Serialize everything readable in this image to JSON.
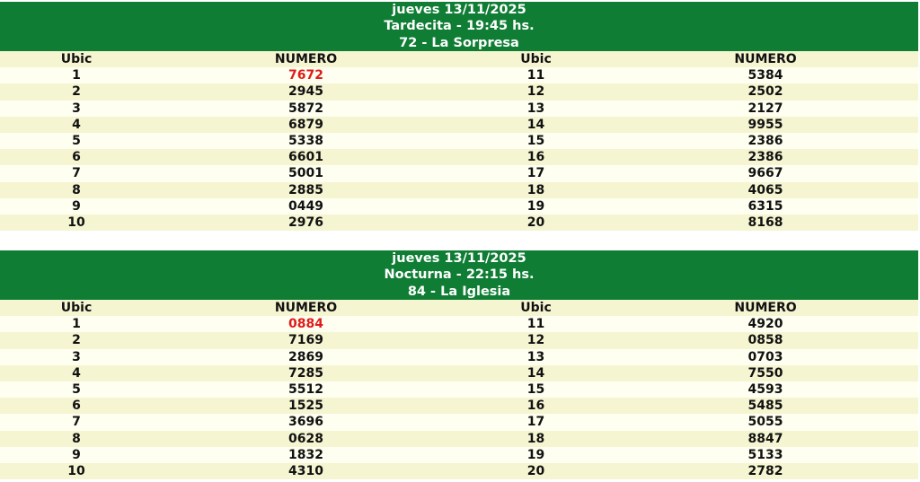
{
  "columns": {
    "ubic": "Ubic",
    "numero": "NUMERO"
  },
  "colors": {
    "header_bg": "#0f7d34",
    "first_prize": "#e01b1b",
    "row_alt": "#f5f5d2",
    "row_light": "#fefff0"
  },
  "draws": [
    {
      "date": "jueves 13/11/2025",
      "session": "Tardecita - 19:45 hs.",
      "head_number": "72 - La Sorpresa",
      "rows": [
        {
          "u1": "1",
          "n1": "7672",
          "u2": "11",
          "n2": "5384"
        },
        {
          "u1": "2",
          "n1": "2945",
          "u2": "12",
          "n2": "2502"
        },
        {
          "u1": "3",
          "n1": "5872",
          "u2": "13",
          "n2": "2127"
        },
        {
          "u1": "4",
          "n1": "6879",
          "u2": "14",
          "n2": "9955"
        },
        {
          "u1": "5",
          "n1": "5338",
          "u2": "15",
          "n2": "2386"
        },
        {
          "u1": "6",
          "n1": "6601",
          "u2": "16",
          "n2": "2386"
        },
        {
          "u1": "7",
          "n1": "5001",
          "u2": "17",
          "n2": "9667"
        },
        {
          "u1": "8",
          "n1": "2885",
          "u2": "18",
          "n2": "4065"
        },
        {
          "u1": "9",
          "n1": "0449",
          "u2": "19",
          "n2": "6315"
        },
        {
          "u1": "10",
          "n1": "2976",
          "u2": "20",
          "n2": "8168"
        }
      ]
    },
    {
      "date": "jueves 13/11/2025",
      "session": "Nocturna - 22:15 hs.",
      "head_number": "84 - La Iglesia",
      "rows": [
        {
          "u1": "1",
          "n1": "0884",
          "u2": "11",
          "n2": "4920"
        },
        {
          "u1": "2",
          "n1": "7169",
          "u2": "12",
          "n2": "0858"
        },
        {
          "u1": "3",
          "n1": "2869",
          "u2": "13",
          "n2": "0703"
        },
        {
          "u1": "4",
          "n1": "7285",
          "u2": "14",
          "n2": "7550"
        },
        {
          "u1": "5",
          "n1": "5512",
          "u2": "15",
          "n2": "4593"
        },
        {
          "u1": "6",
          "n1": "1525",
          "u2": "16",
          "n2": "5485"
        },
        {
          "u1": "7",
          "n1": "3696",
          "u2": "17",
          "n2": "5055"
        },
        {
          "u1": "8",
          "n1": "0628",
          "u2": "18",
          "n2": "8847"
        },
        {
          "u1": "9",
          "n1": "1832",
          "u2": "19",
          "n2": "5133"
        },
        {
          "u1": "10",
          "n1": "4310",
          "u2": "20",
          "n2": "2782"
        }
      ]
    }
  ]
}
